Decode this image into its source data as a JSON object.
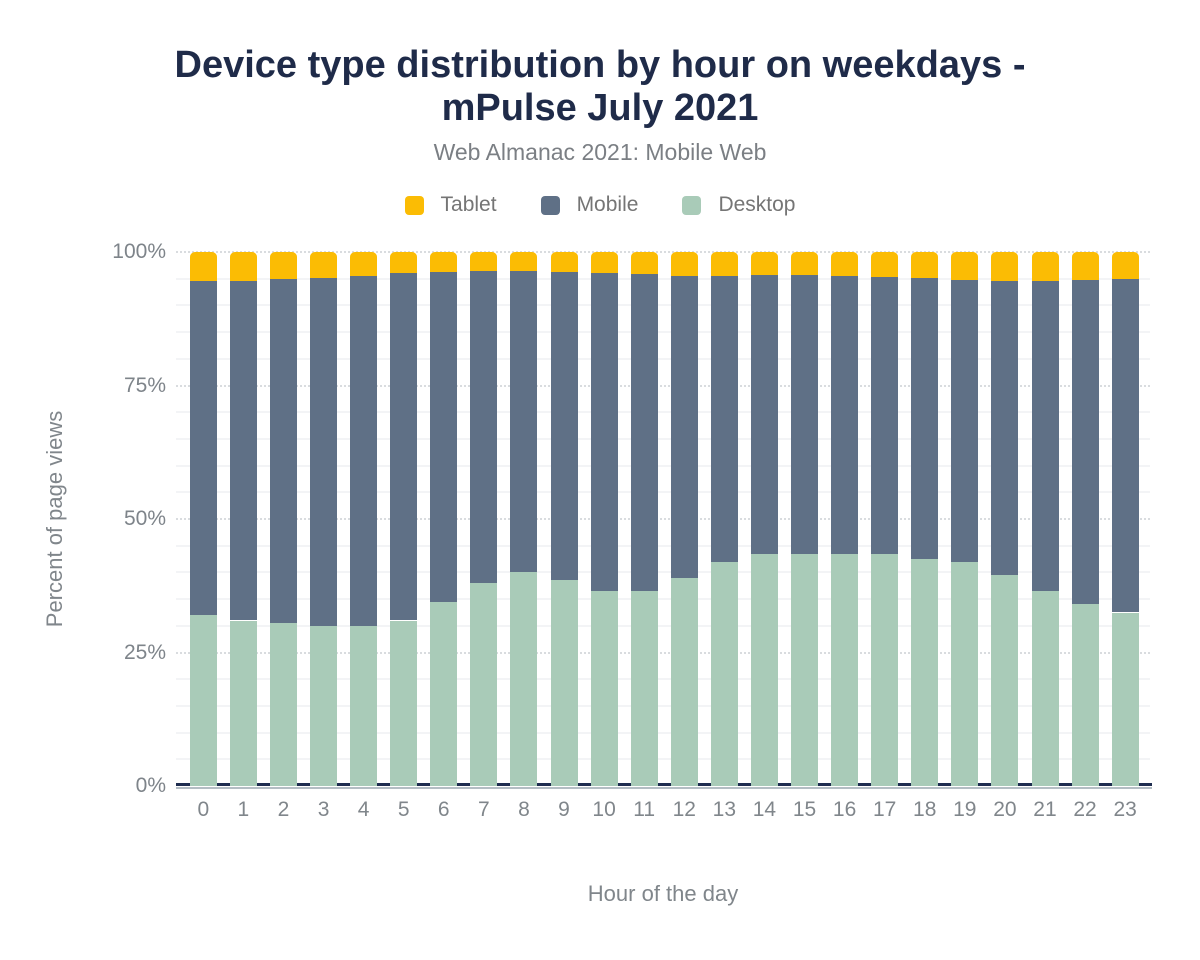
{
  "header": {
    "title_lines": [
      "Device type distribution by hour on weekdays -",
      "mPulse July 2021"
    ],
    "subtitle": "Web Almanac 2021: Mobile Web"
  },
  "legend": {
    "position": "top-center",
    "items": [
      {
        "label": "Tablet",
        "color": "#fbbc04"
      },
      {
        "label": "Mobile",
        "color": "#5f7086"
      },
      {
        "label": "Desktop",
        "color": "#a9cbb8"
      }
    ]
  },
  "colors": {
    "title_text": "#1f2b49",
    "subtitle_text": "#7b7f84",
    "axis_text": "#80868b",
    "baseline": "#1f2d50",
    "baseline_shadow": "#b4bdc4",
    "grid_minor": "#f3f4f6",
    "grid_major": "#d9dcdf"
  },
  "chart_data": {
    "type": "bar",
    "stacked": true,
    "percent": true,
    "title": "Device type distribution by hour on weekdays - mPulse July 2021",
    "subtitle": "Web Almanac 2021: Mobile Web",
    "xlabel": "Hour of the day",
    "ylabel": "Percent of page views",
    "categories": [
      "0",
      "1",
      "2",
      "3",
      "4",
      "5",
      "6",
      "7",
      "8",
      "9",
      "10",
      "11",
      "12",
      "13",
      "14",
      "15",
      "16",
      "17",
      "18",
      "19",
      "20",
      "21",
      "22",
      "23"
    ],
    "series": [
      {
        "name": "Desktop",
        "color": "#a9cbb8",
        "values": [
          32,
          31,
          30.5,
          30,
          30,
          31,
          34.5,
          38,
          40,
          38.5,
          36.5,
          36.5,
          39,
          42,
          43.5,
          43.5,
          43.5,
          43.5,
          42.5,
          42,
          39.5,
          36.5,
          34,
          32.5
        ]
      },
      {
        "name": "Mobile",
        "color": "#5f7086",
        "values": [
          62.5,
          63.5,
          64.5,
          65.2,
          65.5,
          65,
          61.7,
          58.4,
          56.5,
          57.7,
          59.5,
          59.4,
          56.6,
          53.5,
          52.2,
          52.2,
          52,
          51.9,
          52.6,
          52.8,
          55,
          58.1,
          60.7,
          62.4
        ]
      },
      {
        "name": "Tablet",
        "color": "#fbbc04",
        "values": [
          5.5,
          5.5,
          5,
          4.8,
          4.5,
          4,
          3.8,
          3.6,
          3.5,
          3.8,
          4,
          4.1,
          4.4,
          4.5,
          4.3,
          4.3,
          4.5,
          4.6,
          4.9,
          5.2,
          5.5,
          5.4,
          5.3,
          5.1
        ]
      }
    ],
    "ylim": [
      0,
      100
    ],
    "yticks": [
      {
        "value": 0,
        "label": "0%"
      },
      {
        "value": 25,
        "label": "25%"
      },
      {
        "value": 50,
        "label": "50%"
      },
      {
        "value": 75,
        "label": "75%"
      },
      {
        "value": 100,
        "label": "100%"
      }
    ],
    "grid": {
      "minor_step": 5,
      "major_step": 25,
      "minor_on": true,
      "major_on": true
    },
    "legend_position": "top-center"
  }
}
